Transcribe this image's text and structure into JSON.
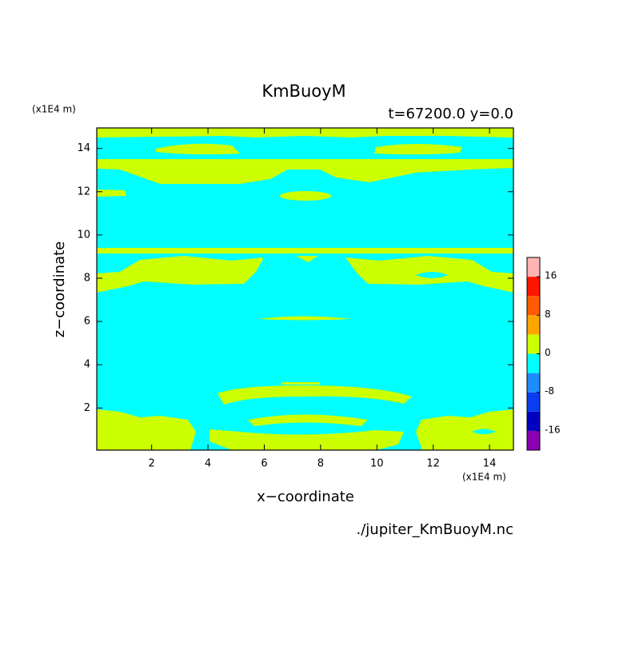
{
  "chart_data": {
    "type": "contour",
    "title": "KmBuoyM",
    "subtitle": "t=67200.0 y=0.0",
    "x_label": "x−coordinate",
    "y_label": "z−coordinate",
    "x_unit": "(x1E4 m)",
    "y_unit": "(x1E4 m)",
    "source": "./jupiter_KmBuoyM.nc",
    "xlim": [
      0.05,
      14.85
    ],
    "ylim": [
      0.05,
      14.95
    ],
    "xticks": [
      2,
      4,
      6,
      8,
      10,
      12,
      14
    ],
    "yticks": [
      2,
      4,
      6,
      8,
      10,
      12,
      14
    ],
    "levels": [
      -20,
      -16,
      -12,
      -8,
      -4,
      0,
      4,
      8,
      12,
      16,
      20
    ],
    "colors": [
      "#8a00b0",
      "#0000c0",
      "#0a3cf0",
      "#1e8cff",
      "#00ffff",
      "#ccff00",
      "#ffa500",
      "#ff5a00",
      "#ff1400",
      "#ffb4b4"
    ],
    "colorbar_ticks": [
      -16,
      -8,
      0,
      8,
      16
    ]
  }
}
